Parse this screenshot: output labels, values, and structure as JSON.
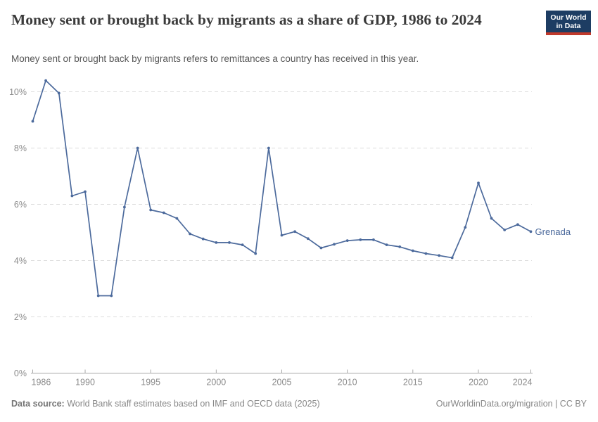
{
  "header": {
    "title": "Money sent or brought back by migrants as a share of GDP, 1986 to 2024",
    "subtitle": "Money sent or brought back by migrants refers to remittances a country has received in this year.",
    "logo": {
      "line1": "Our World",
      "line2": "in Data"
    }
  },
  "chart_data": {
    "type": "line",
    "title": "Money sent or brought back by migrants as a share of GDP, 1986 to 2024",
    "x": [
      1986,
      1987,
      1988,
      1989,
      1990,
      1991,
      1992,
      1993,
      1994,
      1995,
      1996,
      1997,
      1998,
      1999,
      2000,
      2001,
      2002,
      2003,
      2004,
      2005,
      2006,
      2007,
      2008,
      2009,
      2010,
      2011,
      2012,
      2013,
      2014,
      2015,
      2016,
      2017,
      2018,
      2019,
      2020,
      2021,
      2022,
      2023,
      2024
    ],
    "series": [
      {
        "name": "Grenada",
        "values": [
          8.95,
          10.4,
          9.95,
          6.3,
          6.45,
          2.75,
          2.75,
          5.9,
          8.0,
          5.8,
          5.7,
          5.5,
          4.95,
          4.77,
          4.64,
          4.64,
          4.56,
          4.25,
          8.0,
          4.9,
          5.03,
          4.78,
          4.45,
          4.58,
          4.71,
          4.74,
          4.74,
          4.56,
          4.49,
          4.35,
          4.25,
          4.18,
          4.1,
          5.18,
          6.76,
          5.5,
          5.09,
          5.28,
          5.03
        ]
      }
    ],
    "xlabel": "",
    "ylabel": "",
    "xlim": [
      1986,
      2024
    ],
    "ylim": [
      0,
      10.5
    ],
    "x_ticks": [
      1986,
      1990,
      1995,
      2000,
      2005,
      2010,
      2015,
      2020,
      2024
    ],
    "y_ticks": [
      {
        "value": 0,
        "label": "0%"
      },
      {
        "value": 2,
        "label": "2%"
      },
      {
        "value": 4,
        "label": "4%"
      },
      {
        "value": 6,
        "label": "6%"
      },
      {
        "value": 8,
        "label": "8%"
      },
      {
        "value": 10,
        "label": "10%"
      }
    ],
    "grid": "horizontal-dashed",
    "legend_position": "end-of-line-label",
    "line_color": "#4c6a9c",
    "grid_color": "#dcdcdc",
    "axis_color": "#a8a8a8",
    "tick_label_color": "#8c8c8c"
  },
  "footer": {
    "datasource_label": "Data source:",
    "datasource_text": " World Bank staff estimates based on IMF and OECD data (2025)",
    "link_text": "OurWorldinData.org/migration | CC BY"
  }
}
